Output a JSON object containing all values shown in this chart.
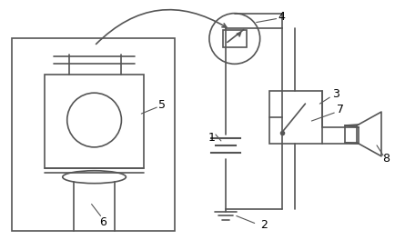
{
  "bg_color": "#ffffff",
  "line_color": "#555555",
  "label_color": "#000000",
  "fig_width": 4.34,
  "fig_height": 2.75,
  "dpi": 100
}
